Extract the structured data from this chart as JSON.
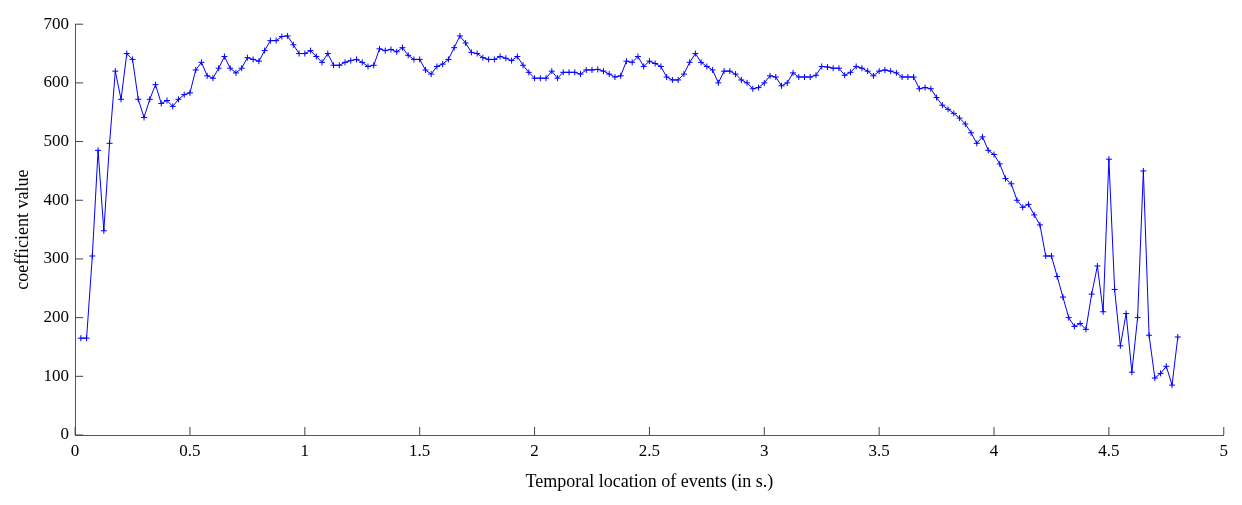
{
  "chart_data": {
    "type": "line",
    "xlabel": "Temporal location of events (in s.)",
    "ylabel": "coefficient value",
    "marker": "cross",
    "line_style": "solid",
    "grid": false,
    "legend": false,
    "xlim": [
      0,
      5
    ],
    "xticks": [
      0,
      0.5,
      1,
      1.5,
      2,
      2.5,
      3,
      3.5,
      4,
      4.5,
      5
    ],
    "ylim": [
      0,
      700
    ],
    "yticks": [
      0,
      100,
      200,
      300,
      400,
      500,
      600,
      700
    ],
    "x": [
      0.025,
      0.05,
      0.075,
      0.1,
      0.125,
      0.15,
      0.175,
      0.2,
      0.225,
      0.25,
      0.275,
      0.3,
      0.325,
      0.35,
      0.375,
      0.4,
      0.425,
      0.45,
      0.475,
      0.5,
      0.525,
      0.55,
      0.575,
      0.6,
      0.625,
      0.65,
      0.675,
      0.7,
      0.725,
      0.75,
      0.775,
      0.8,
      0.825,
      0.85,
      0.875,
      0.9,
      0.925,
      0.95,
      0.975,
      1.0,
      1.025,
      1.05,
      1.075,
      1.1,
      1.125,
      1.15,
      1.175,
      1.2,
      1.225,
      1.25,
      1.275,
      1.3,
      1.325,
      1.35,
      1.375,
      1.4,
      1.425,
      1.45,
      1.475,
      1.5,
      1.525,
      1.55,
      1.575,
      1.6,
      1.625,
      1.65,
      1.675,
      1.7,
      1.725,
      1.75,
      1.775,
      1.8,
      1.825,
      1.85,
      1.875,
      1.9,
      1.925,
      1.95,
      1.975,
      2.0,
      2.025,
      2.05,
      2.075,
      2.1,
      2.125,
      2.15,
      2.175,
      2.2,
      2.225,
      2.25,
      2.275,
      2.3,
      2.325,
      2.35,
      2.375,
      2.4,
      2.425,
      2.45,
      2.475,
      2.5,
      2.525,
      2.55,
      2.575,
      2.6,
      2.625,
      2.65,
      2.675,
      2.7,
      2.725,
      2.75,
      2.775,
      2.8,
      2.825,
      2.85,
      2.875,
      2.9,
      2.925,
      2.95,
      2.975,
      3.0,
      3.025,
      3.05,
      3.075,
      3.1,
      3.125,
      3.15,
      3.175,
      3.2,
      3.225,
      3.25,
      3.275,
      3.3,
      3.325,
      3.35,
      3.375,
      3.4,
      3.425,
      3.45,
      3.475,
      3.5,
      3.525,
      3.55,
      3.575,
      3.6,
      3.625,
      3.65,
      3.675,
      3.7,
      3.725,
      3.75,
      3.775,
      3.8,
      3.825,
      3.85,
      3.875,
      3.9,
      3.925,
      3.95,
      3.975,
      4.0,
      4.025,
      4.05,
      4.075,
      4.1,
      4.125,
      4.15,
      4.175,
      4.2,
      4.225,
      4.25,
      4.275,
      4.3,
      4.325,
      4.35,
      4.375,
      4.4,
      4.425,
      4.45,
      4.475,
      4.5,
      4.525,
      4.55,
      4.575,
      4.6,
      4.625,
      4.65,
      4.675,
      4.7,
      4.725,
      4.75,
      4.775,
      4.8
    ],
    "series": [
      {
        "color": "#0000ff",
        "values": [
          165,
          165,
          305,
          485,
          348,
          497,
          620,
          572,
          650,
          640,
          572,
          541,
          572,
          597,
          565,
          570,
          560,
          572,
          580,
          583,
          622,
          635,
          612,
          608,
          625,
          645,
          625,
          617,
          625,
          643,
          640,
          637,
          655,
          672,
          672,
          679,
          680,
          665,
          650,
          650,
          655,
          645,
          635,
          650,
          630,
          630,
          635,
          638,
          640,
          635,
          628,
          630,
          658,
          655,
          657,
          653,
          660,
          647,
          640,
          640,
          622,
          615,
          628,
          632,
          640,
          660,
          680,
          668,
          652,
          650,
          643,
          640,
          640,
          645,
          642,
          638,
          645,
          630,
          618,
          608,
          608,
          608,
          620,
          608,
          618,
          618,
          618,
          615,
          622,
          622,
          623,
          620,
          615,
          610,
          612,
          637,
          635,
          645,
          628,
          637,
          633,
          628,
          610,
          605,
          605,
          615,
          635,
          650,
          635,
          628,
          622,
          600,
          620,
          620,
          615,
          605,
          600,
          590,
          592,
          600,
          612,
          610,
          595,
          600,
          617,
          610,
          610,
          610,
          613,
          628,
          627,
          625,
          625,
          613,
          618,
          628,
          625,
          620,
          612,
          620,
          622,
          620,
          617,
          610,
          610,
          610,
          590,
          592,
          590,
          575,
          562,
          555,
          548,
          540,
          530,
          515,
          497,
          508,
          485,
          478,
          462,
          437,
          428,
          400,
          388,
          393,
          375,
          358,
          305,
          305,
          270,
          235,
          200,
          185,
          190,
          180,
          240,
          288,
          210,
          470,
          248,
          152,
          207,
          107,
          200,
          450,
          170,
          97,
          105,
          117,
          85,
          167
        ]
      }
    ]
  }
}
